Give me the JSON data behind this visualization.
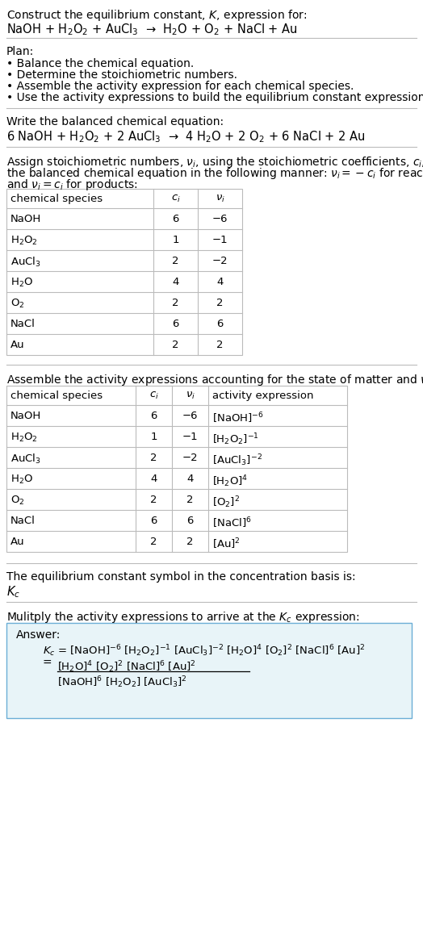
{
  "title_line1": "Construct the equilibrium constant, $K$, expression for:",
  "reaction_unbalanced": "NaOH + H$_2$O$_2$ + AuCl$_3$  →  H$_2$O + O$_2$ + NaCl + Au",
  "plan_header": "Plan:",
  "plan_items": [
    "• Balance the chemical equation.",
    "• Determine the stoichiometric numbers.",
    "• Assemble the activity expression for each chemical species.",
    "• Use the activity expressions to build the equilibrium constant expression."
  ],
  "balanced_header": "Write the balanced chemical equation:",
  "balanced_eq": "6 NaOH + H$_2$O$_2$ + 2 AuCl$_3$  →  4 H$_2$O + 2 O$_2$ + 6 NaCl + 2 Au",
  "stoich_header1": "Assign stoichiometric numbers, $\\nu_i$, using the stoichiometric coefficients, $c_i$, from",
  "stoich_header2": "the balanced chemical equation in the following manner: $\\nu_i = -c_i$ for reactants",
  "stoich_header3": "and $\\nu_i = c_i$ for products:",
  "table1_col0_header": "chemical species",
  "table1_col1_header": "$c_i$",
  "table1_col2_header": "$\\nu_i$",
  "table1_rows": [
    [
      "NaOH",
      "6",
      "−6"
    ],
    [
      "H$_2$O$_2$",
      "1",
      "−1"
    ],
    [
      "AuCl$_3$",
      "2",
      "−2"
    ],
    [
      "H$_2$O",
      "4",
      "4"
    ],
    [
      "O$_2$",
      "2",
      "2"
    ],
    [
      "NaCl",
      "6",
      "6"
    ],
    [
      "Au",
      "2",
      "2"
    ]
  ],
  "activity_header": "Assemble the activity expressions accounting for the state of matter and $\\nu_i$:",
  "table2_col0_header": "chemical species",
  "table2_col1_header": "$c_i$",
  "table2_col2_header": "$\\nu_i$",
  "table2_col3_header": "activity expression",
  "table2_rows": [
    [
      "NaOH",
      "6",
      "−6",
      "[NaOH]$^{-6}$"
    ],
    [
      "H$_2$O$_2$",
      "1",
      "−1",
      "[H$_2$O$_2$]$^{-1}$"
    ],
    [
      "AuCl$_3$",
      "2",
      "−2",
      "[AuCl$_3$]$^{-2}$"
    ],
    [
      "H$_2$O",
      "4",
      "4",
      "[H$_2$O]$^{4}$"
    ],
    [
      "O$_2$",
      "2",
      "2",
      "[O$_2$]$^{2}$"
    ],
    [
      "NaCl",
      "6",
      "6",
      "[NaCl]$^{6}$"
    ],
    [
      "Au",
      "2",
      "2",
      "[Au]$^{2}$"
    ]
  ],
  "kc_symbol_header": "The equilibrium constant symbol in the concentration basis is:",
  "kc_symbol": "$K_c$",
  "multiply_header": "Mulitply the activity expressions to arrive at the $K_c$ expression:",
  "answer_label": "Answer:",
  "kc_line1": "$K_c$ = [NaOH]$^{-6}$ [H$_2$O$_2$]$^{-1}$ [AuCl$_3$]$^{-2}$ [H$_2$O]$^{4}$ [O$_2$]$^{2}$ [NaCl]$^{6}$ [Au]$^{2}$",
  "kc_num": "[H$_2$O]$^{4}$ [O$_2$]$^{2}$ [NaCl]$^{6}$ [Au]$^{2}$",
  "kc_den": "[NaOH]$^{6}$ [H$_2$O$_2$] [AuCl$_3$]$^{2}$",
  "bg_color": "#ffffff",
  "line_color": "#bbbbbb",
  "answer_box_bg": "#e8f4f8",
  "answer_box_border": "#6baed6"
}
